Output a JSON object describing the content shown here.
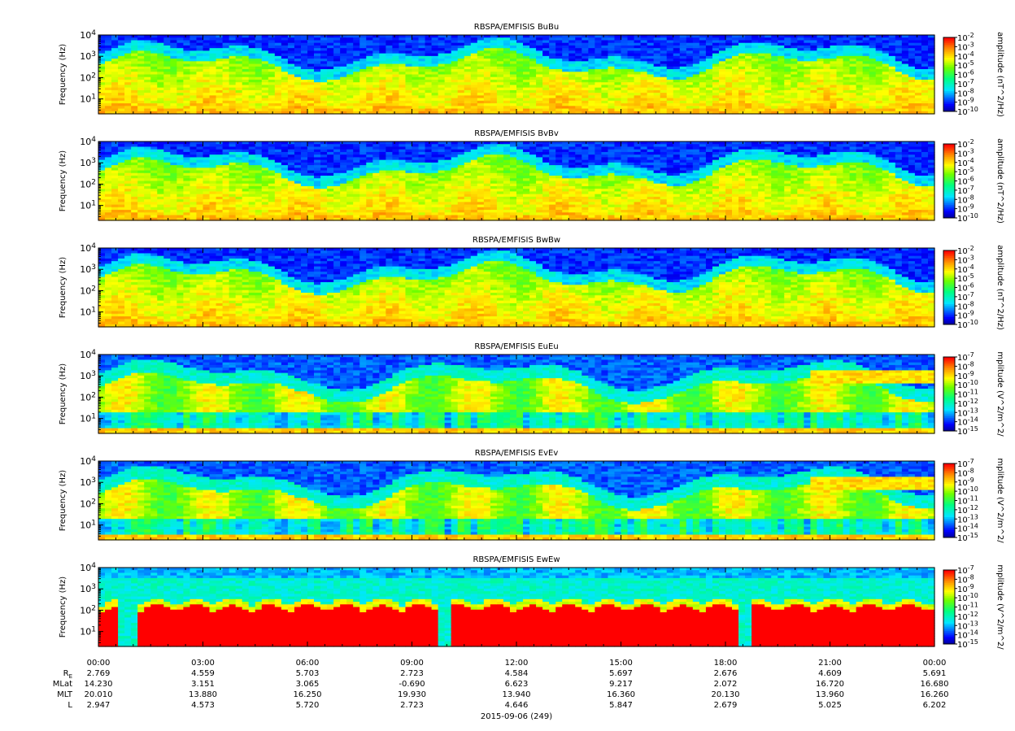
{
  "chart_data": {
    "type": "heatmap",
    "panels": [
      {
        "title": "RBSPA/EMFISIS  BuBu",
        "ylabel": "Frequency (Hz)",
        "ylim": [
          2,
          10000
        ],
        "y_log": true,
        "yticks": [
          "10^4",
          "10^3",
          "10^2",
          "10^1"
        ],
        "colorbar_label": "amplitude (nT^2/Hz)",
        "colorbar_ticks": [
          "10^-2",
          "10^-3",
          "10^-4",
          "10^-5",
          "10^-6",
          "10^-7",
          "10^-8",
          "10^-9",
          "10^-10"
        ],
        "clim": [
          -10,
          -2
        ]
      },
      {
        "title": "RBSPA/EMFISIS  BvBv",
        "ylabel": "Frequency (Hz)",
        "ylim": [
          2,
          10000
        ],
        "y_log": true,
        "yticks": [
          "10^4",
          "10^3",
          "10^2",
          "10^1"
        ],
        "colorbar_label": "amplitude (nT^2/Hz)",
        "colorbar_ticks": [
          "10^-2",
          "10^-3",
          "10^-4",
          "10^-5",
          "10^-6",
          "10^-7",
          "10^-8",
          "10^-9",
          "10^-10"
        ],
        "clim": [
          -10,
          -2
        ]
      },
      {
        "title": "RBSPA/EMFISIS  BwBw",
        "ylabel": "Frequency (Hz)",
        "ylim": [
          2,
          10000
        ],
        "y_log": true,
        "yticks": [
          "10^4",
          "10^3",
          "10^2",
          "10^1"
        ],
        "colorbar_label": "amplitude (nT^2/Hz)",
        "colorbar_ticks": [
          "10^-2",
          "10^-3",
          "10^-4",
          "10^-5",
          "10^-6",
          "10^-7",
          "10^-8",
          "10^-9",
          "10^-10"
        ],
        "clim": [
          -10,
          -2
        ]
      },
      {
        "title": "RBSPA/EMFISIS  EuEu",
        "ylabel": "Frequency (Hz)",
        "ylim": [
          2,
          10000
        ],
        "y_log": true,
        "yticks": [
          "10^4",
          "10^3",
          "10^2",
          "10^1"
        ],
        "colorbar_label": "mplitude (V^2/m^2/",
        "colorbar_ticks": [
          "10^-7",
          "10^-8",
          "10^-9",
          "10^-10",
          "10^-11",
          "10^-12",
          "10^-13",
          "10^-14",
          "10^-15"
        ],
        "clim": [
          -15,
          -7
        ]
      },
      {
        "title": "RBSPA/EMFISIS  EvEv",
        "ylabel": "Frequency (Hz)",
        "ylim": [
          2,
          10000
        ],
        "y_log": true,
        "yticks": [
          "10^4",
          "10^3",
          "10^2",
          "10^1"
        ],
        "colorbar_label": "mplitude (V^2/m^2/",
        "colorbar_ticks": [
          "10^-7",
          "10^-8",
          "10^-9",
          "10^-10",
          "10^-11",
          "10^-12",
          "10^-13",
          "10^-14",
          "10^-15"
        ],
        "clim": [
          -15,
          -7
        ]
      },
      {
        "title": "RBSPA/EMFISIS  EwEw",
        "ylabel": "Frequency (Hz)",
        "ylim": [
          2,
          10000
        ],
        "y_log": true,
        "yticks": [
          "10^4",
          "10^3",
          "10^2",
          "10^1"
        ],
        "colorbar_label": "mplitude (V^2/m^2/",
        "colorbar_ticks": [
          "10^-7",
          "10^-8",
          "10^-9",
          "10^-10",
          "10^-11",
          "10^-12",
          "10^-13",
          "10^-14",
          "10^-15"
        ],
        "clim": [
          -15,
          -7
        ]
      }
    ],
    "x_ticks": [
      "00:00",
      "03:00",
      "06:00",
      "09:00",
      "12:00",
      "15:00",
      "18:00",
      "21:00",
      "00:00"
    ],
    "ephemeris": [
      {
        "label": "R_E",
        "values": [
          "2.769",
          "4.559",
          "5.703",
          "2.723",
          "4.584",
          "5.697",
          "2.676",
          "4.609",
          "5.691"
        ]
      },
      {
        "label": "MLat",
        "values": [
          "14.230",
          "3.151",
          "3.065",
          "-0.690",
          "6.623",
          "9.217",
          "2.072",
          "16.720",
          "16.680"
        ]
      },
      {
        "label": "MLT",
        "values": [
          "20.010",
          "13.880",
          "16.250",
          "19.930",
          "13.940",
          "16.360",
          "20.130",
          "13.960",
          "16.260"
        ]
      },
      {
        "label": "L",
        "values": [
          "2.947",
          "4.573",
          "5.720",
          "2.723",
          "4.646",
          "5.847",
          "2.679",
          "5.025",
          "6.202"
        ]
      }
    ],
    "xlabel": "2015-09-06 (249)"
  }
}
